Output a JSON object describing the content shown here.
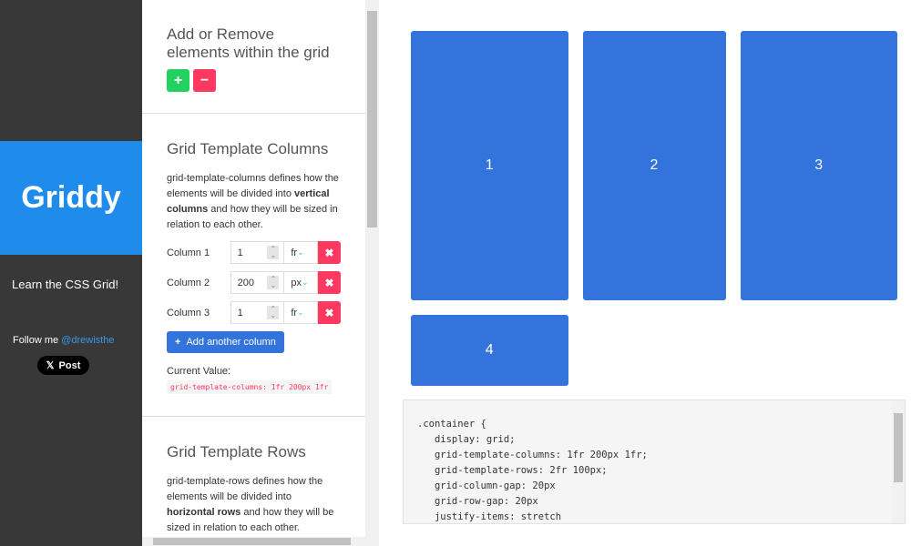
{
  "sidebar": {
    "brand": "Griddy",
    "tagline": "Learn the CSS Grid!",
    "follow": "Follow me",
    "handle": "@drewisthe",
    "post": "Post"
  },
  "panel": {
    "add_remove": {
      "title": "Add or Remove elements within the grid",
      "add": "+",
      "remove": "−"
    },
    "columns": {
      "title": "Grid Template Columns",
      "desc_pre": "grid-template-columns defines how the elements will be divided into ",
      "desc_bold": "vertical columns",
      "desc_post": " and how they will be sized in relation to each other.",
      "items": [
        {
          "label": "Column 1",
          "value": "1",
          "unit": "fr"
        },
        {
          "label": "Column 2",
          "value": "200",
          "unit": "px"
        },
        {
          "label": "Column 3",
          "value": "1",
          "unit": "fr"
        }
      ],
      "add_label": "Add another column",
      "current_label": "Current Value:",
      "current_value": "grid-template-columns: 1fr 200px 1fr"
    },
    "rows": {
      "title": "Grid Template Rows",
      "desc_pre": "grid-template-rows defines how the elements will be divided into ",
      "desc_bold": "horizontal rows",
      "desc_post": " and how they will be sized in relation to each other."
    }
  },
  "grid": {
    "items": [
      "1",
      "2",
      "3",
      "4"
    ]
  },
  "code": ".container {\n   display: grid;\n   grid-template-columns: 1fr 200px 1fr;\n   grid-template-rows: 2fr 100px;\n   grid-column-gap: 20px\n   grid-row-gap: 20px\n   justify-items: stretch",
  "colors": {
    "accent": "#3273dc",
    "brand": "#1f8ceb",
    "danger": "#ff3860",
    "success": "#23d160"
  }
}
